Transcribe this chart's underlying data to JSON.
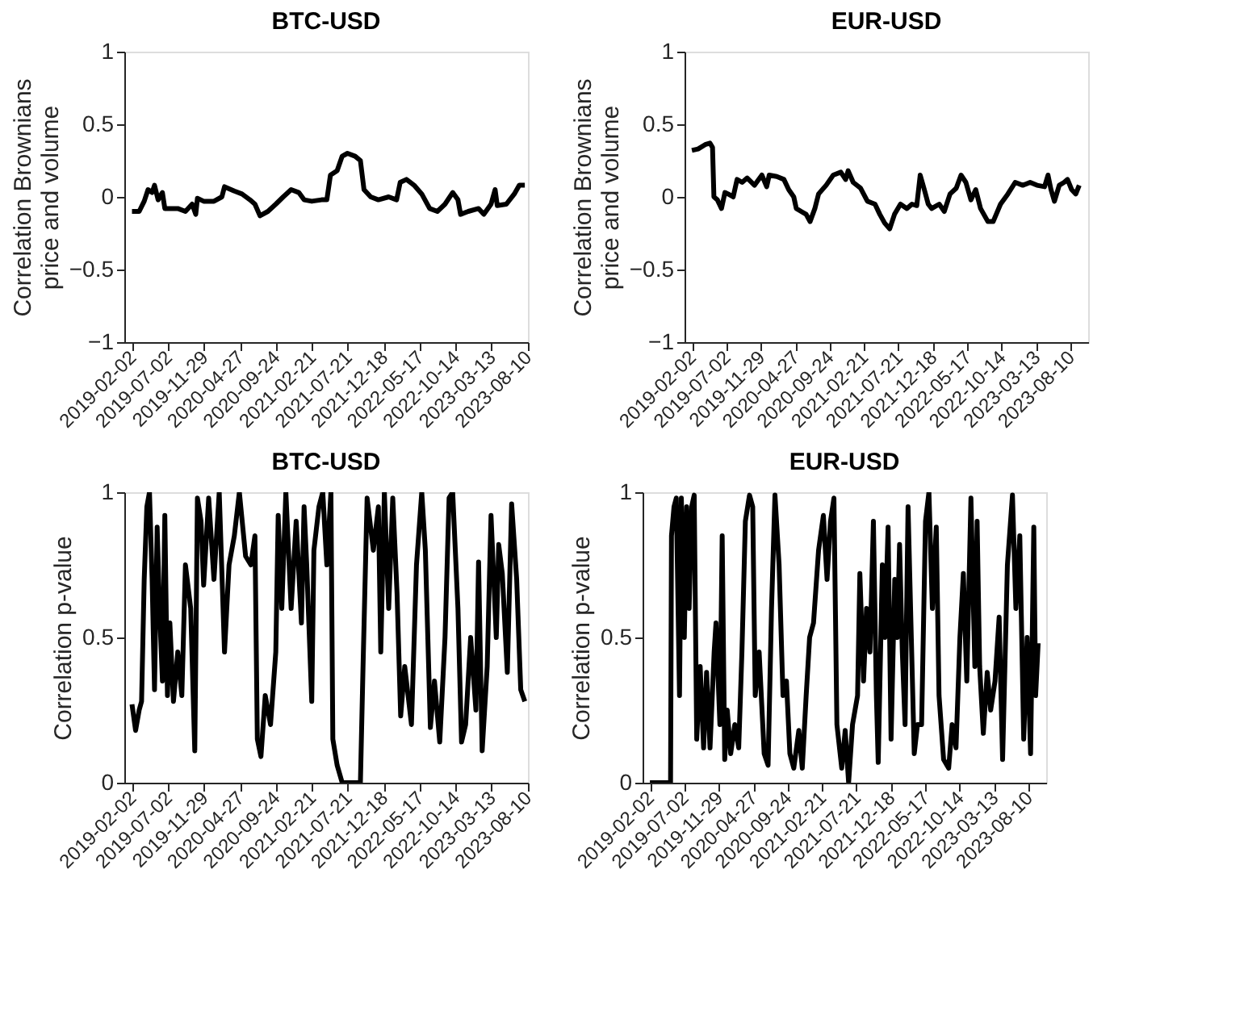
{
  "chart_data": [
    {
      "type": "line",
      "title": "BTC-USD",
      "ylabel": "Correlation Brownians\nprice and volume",
      "xlim": [
        "2019-01-01",
        "2023-08-12"
      ],
      "ylim": [
        -1,
        1
      ],
      "yticks": [
        -1,
        -0.5,
        0,
        0.5,
        1
      ],
      "xticks": [
        "2019-02-02",
        "2019-07-02",
        "2019-11-29",
        "2020-04-27",
        "2020-09-24",
        "2021-02-21",
        "2021-07-21",
        "2021-12-18",
        "2022-05-17",
        "2022-10-14",
        "2023-03-13",
        "2023-08-10"
      ],
      "grid": false,
      "x": [
        "2019-02-02",
        "2019-03-04",
        "2019-03-25",
        "2019-04-10",
        "2019-04-27",
        "2019-05-07",
        "2019-05-22",
        "2019-06-09",
        "2019-06-19",
        "2019-07-10",
        "2019-08-12",
        "2019-09-13",
        "2019-10-11",
        "2019-10-26",
        "2019-11-02",
        "2019-11-28",
        "2020-01-10",
        "2020-02-12",
        "2020-02-23",
        "2020-04-04",
        "2020-05-06",
        "2020-06-08",
        "2020-06-29",
        "2020-07-20",
        "2020-08-22",
        "2020-09-24",
        "2020-10-25",
        "2020-11-27",
        "2020-12-29",
        "2021-01-20",
        "2021-02-21",
        "2021-04-03",
        "2021-04-25",
        "2021-05-10",
        "2021-06-07",
        "2021-06-28",
        "2021-07-20",
        "2021-08-21",
        "2021-09-12",
        "2021-09-27",
        "2021-10-25",
        "2021-11-26",
        "2022-01-08",
        "2022-02-10",
        "2022-02-25",
        "2022-03-23",
        "2022-04-24",
        "2022-05-26",
        "2022-06-28",
        "2022-07-30",
        "2022-08-31",
        "2022-10-02",
        "2022-10-24",
        "2022-11-04",
        "2022-12-06",
        "2023-01-18",
        "2023-02-09",
        "2023-03-11",
        "2023-03-28",
        "2023-04-06",
        "2023-05-14",
        "2023-06-16",
        "2023-07-07",
        "2023-07-30"
      ],
      "series": [
        {
          "color": "#000000",
          "values": [
            -0.1,
            -0.1,
            -0.03,
            0.05,
            0.03,
            0.08,
            -0.02,
            0.03,
            -0.08,
            -0.08,
            -0.08,
            -0.1,
            -0.05,
            -0.12,
            -0.01,
            -0.03,
            -0.03,
            0,
            0.07,
            0.04,
            0.02,
            -0.02,
            -0.05,
            -0.13,
            -0.1,
            -0.05,
            0,
            0.05,
            0.03,
            -0.02,
            -0.03,
            -0.02,
            -0.02,
            0.15,
            0.18,
            0.28,
            0.3,
            0.28,
            0.25,
            0.05,
            0,
            -0.02,
            0,
            -0.02,
            0.1,
            0.12,
            0.08,
            0.02,
            -0.08,
            -0.1,
            -0.05,
            0.03,
            -0.02,
            -0.12,
            -0.1,
            -0.08,
            -0.12,
            -0.05,
            0.05,
            -0.06,
            -0.05,
            0.02,
            0.08,
            0.08
          ]
        }
      ]
    },
    {
      "type": "line",
      "title": "EUR-USD",
      "ylabel": "Correlation Brownians\nprice and volume",
      "xlim": [
        "2019-01-01",
        "2023-10-26"
      ],
      "ylim": [
        -1,
        1
      ],
      "yticks": [
        -1,
        -0.5,
        0,
        0.5,
        1
      ],
      "xticks": [
        "2019-02-02",
        "2019-07-02",
        "2019-11-29",
        "2020-04-27",
        "2020-09-24",
        "2021-02-21",
        "2021-07-21",
        "2021-12-18",
        "2022-05-17",
        "2022-10-14",
        "2023-03-13",
        "2023-08-10"
      ],
      "grid": false,
      "x": [
        "2019-02-02",
        "2019-03-01",
        "2019-04-01",
        "2019-04-22",
        "2019-05-03",
        "2019-05-09",
        "2019-05-24",
        "2019-06-11",
        "2019-06-26",
        "2019-07-10",
        "2019-08-01",
        "2019-08-18",
        "2019-09-09",
        "2019-10-01",
        "2019-11-02",
        "2019-12-04",
        "2019-12-25",
        "2020-01-05",
        "2020-02-07",
        "2020-03-09",
        "2020-03-30",
        "2020-04-21",
        "2020-05-02",
        "2020-05-23",
        "2020-06-14",
        "2020-07-01",
        "2020-07-22",
        "2020-08-07",
        "2020-09-09",
        "2020-10-10",
        "2020-11-12",
        "2020-12-03",
        "2020-12-14",
        "2021-01-05",
        "2021-02-06",
        "2021-03-08",
        "2021-04-10",
        "2021-05-01",
        "2021-05-22",
        "2021-06-13",
        "2021-07-04",
        "2021-07-30",
        "2021-08-27",
        "2021-09-18",
        "2021-10-09",
        "2021-10-24",
        "2021-11-11",
        "2021-11-28",
        "2021-12-13",
        "2022-01-15",
        "2022-02-06",
        "2022-03-03",
        "2022-03-30",
        "2022-04-20",
        "2022-05-11",
        "2022-06-02",
        "2022-06-23",
        "2022-07-14",
        "2022-08-15",
        "2022-09-07",
        "2022-10-09",
        "2022-11-10",
        "2022-12-12",
        "2023-01-14",
        "2023-02-15",
        "2023-03-17",
        "2023-04-19",
        "2023-05-04",
        "2023-05-17",
        "2023-06-01",
        "2023-06-22",
        "2023-07-13",
        "2023-07-28",
        "2023-08-15",
        "2023-09-02",
        "2023-09-17"
      ],
      "series": [
        {
          "color": "#000000",
          "values": [
            0.32,
            0.33,
            0.36,
            0.37,
            0.34,
            0.0,
            -0.02,
            -0.08,
            0.03,
            0.02,
            0.0,
            0.12,
            0.1,
            0.13,
            0.08,
            0.15,
            0.07,
            0.15,
            0.14,
            0.12,
            0.05,
            0.0,
            -0.08,
            -0.1,
            -0.12,
            -0.17,
            -0.08,
            0.02,
            0.08,
            0.15,
            0.17,
            0.12,
            0.18,
            0.1,
            0.06,
            -0.03,
            -0.05,
            -0.12,
            -0.18,
            -0.22,
            -0.12,
            -0.05,
            -0.08,
            -0.05,
            -0.06,
            0.15,
            0.05,
            -0.05,
            -0.08,
            -0.05,
            -0.1,
            0.02,
            0.06,
            0.15,
            0.1,
            -0.02,
            0.05,
            -0.08,
            -0.17,
            -0.17,
            -0.05,
            0.02,
            0.1,
            0.08,
            0.1,
            0.08,
            0.07,
            0.15,
            0.05,
            -0.03,
            0.08,
            0.1,
            0.12,
            0.05,
            0.02,
            0.08
          ]
        }
      ]
    },
    {
      "type": "line",
      "title": "BTC-USD",
      "ylabel": "Correlation p-value",
      "xlim": [
        "2019-01-01",
        "2023-08-12"
      ],
      "ylim": [
        0,
        1
      ],
      "yticks": [
        0,
        0.5,
        1
      ],
      "xticks": [
        "2019-02-02",
        "2019-07-02",
        "2019-11-29",
        "2020-04-27",
        "2020-09-24",
        "2021-02-21",
        "2021-07-21",
        "2021-12-18",
        "2022-05-17",
        "2022-10-14",
        "2023-03-13",
        "2023-08-10"
      ],
      "grid": false,
      "x": [
        "2019-02-02",
        "2019-02-17",
        "2019-03-04",
        "2019-03-14",
        "2019-03-25",
        "2019-04-05",
        "2019-04-16",
        "2019-04-27",
        "2019-05-07",
        "2019-05-18",
        "2019-05-28",
        "2019-06-09",
        "2019-06-19",
        "2019-06-30",
        "2019-07-10",
        "2019-07-25",
        "2019-08-12",
        "2019-08-29",
        "2019-09-13",
        "2019-10-05",
        "2019-10-22",
        "2019-11-02",
        "2019-11-17",
        "2019-11-28",
        "2019-12-19",
        "2020-01-10",
        "2020-02-01",
        "2020-02-23",
        "2020-03-13",
        "2020-04-04",
        "2020-04-25",
        "2020-05-21",
        "2020-06-12",
        "2020-06-29",
        "2020-07-09",
        "2020-07-24",
        "2020-08-11",
        "2020-09-02",
        "2020-09-24",
        "2020-10-04",
        "2020-10-19",
        "2020-11-05",
        "2020-11-27",
        "2020-12-18",
        "2021-01-09",
        "2021-01-20",
        "2021-01-31",
        "2021-02-21",
        "2021-03-02",
        "2021-03-23",
        "2021-04-08",
        "2021-04-25",
        "2021-05-12",
        "2021-05-20",
        "2021-06-07",
        "2021-06-28",
        "2021-08-10",
        "2021-09-12",
        "2021-09-23",
        "2021-10-10",
        "2021-11-05",
        "2021-11-26",
        "2021-12-06",
        "2021-12-21",
        "2022-01-08",
        "2022-01-25",
        "2022-02-12",
        "2022-02-27",
        "2022-03-16",
        "2022-04-13",
        "2022-05-04",
        "2022-05-26",
        "2022-06-10",
        "2022-07-01",
        "2022-07-18",
        "2022-08-09",
        "2022-08-31",
        "2022-09-17",
        "2022-10-02",
        "2022-10-24",
        "2022-11-08",
        "2022-11-25",
        "2022-12-16",
        "2023-01-07",
        "2023-01-18",
        "2023-02-02",
        "2023-02-23",
        "2023-03-11",
        "2023-04-02",
        "2023-04-12",
        "2023-04-27",
        "2023-05-18",
        "2023-06-05",
        "2023-06-26",
        "2023-07-13",
        "2023-07-30"
      ],
      "series": [
        {
          "color": "#000000",
          "values": [
            0.27,
            0.18,
            0.25,
            0.28,
            0.7,
            0.95,
            1.0,
            0.7,
            0.32,
            0.88,
            0.6,
            0.35,
            0.92,
            0.3,
            0.55,
            0.28,
            0.45,
            0.3,
            0.75,
            0.6,
            0.11,
            0.98,
            0.9,
            0.68,
            0.98,
            0.7,
            1.0,
            0.45,
            0.75,
            0.85,
            1.0,
            0.78,
            0.75,
            0.85,
            0.15,
            0.09,
            0.3,
            0.2,
            0.45,
            0.92,
            0.6,
            1.0,
            0.6,
            0.9,
            0.55,
            0.95,
            0.75,
            0.28,
            0.8,
            0.95,
            1.0,
            0.75,
            1.0,
            0.15,
            0.06,
            0.0,
            0.0,
            0.0,
            0.4,
            0.98,
            0.8,
            0.95,
            0.45,
            1.0,
            0.6,
            0.98,
            0.65,
            0.23,
            0.4,
            0.2,
            0.75,
            1.0,
            0.8,
            0.19,
            0.35,
            0.14,
            0.5,
            0.98,
            1.0,
            0.6,
            0.14,
            0.2,
            0.5,
            0.25,
            0.76,
            0.11,
            0.4,
            0.92,
            0.5,
            0.82,
            0.72,
            0.38,
            0.96,
            0.7,
            0.32,
            0.28
          ]
        }
      ]
    },
    {
      "type": "line",
      "title": "EUR-USD",
      "ylabel": "Correlation p-value",
      "xlim": [
        "2019-01-01",
        "2023-10-26"
      ],
      "ylim": [
        0,
        1
      ],
      "yticks": [
        0,
        0.5,
        1
      ],
      "xticks": [
        "2019-02-02",
        "2019-07-02",
        "2019-11-29",
        "2020-04-27",
        "2020-09-24",
        "2021-02-21",
        "2021-07-21",
        "2021-12-18",
        "2022-05-17",
        "2022-10-14",
        "2023-03-13",
        "2023-08-10"
      ],
      "grid": false,
      "x": [
        "2019-02-02",
        "2019-05-03",
        "2019-05-07",
        "2019-05-18",
        "2019-05-28",
        "2019-06-11",
        "2019-06-19",
        "2019-07-02",
        "2019-07-12",
        "2019-07-23",
        "2019-08-03",
        "2019-08-14",
        "2019-08-25",
        "2019-09-09",
        "2019-09-24",
        "2019-10-07",
        "2019-10-22",
        "2019-11-09",
        "2019-11-17",
        "2019-12-04",
        "2019-12-14",
        "2019-12-25",
        "2020-01-05",
        "2020-01-20",
        "2020-02-07",
        "2020-02-24",
        "2020-03-09",
        "2020-03-24",
        "2020-04-11",
        "2020-04-25",
        "2020-05-06",
        "2020-05-23",
        "2020-06-14",
        "2020-07-01",
        "2020-07-16",
        "2020-07-31",
        "2020-08-18",
        "2020-09-04",
        "2020-09-19",
        "2020-10-04",
        "2020-10-21",
        "2020-11-12",
        "2020-11-27",
        "2020-12-14",
        "2020-12-29",
        "2021-01-15",
        "2021-02-06",
        "2021-02-27",
        "2021-03-15",
        "2021-03-30",
        "2021-04-14",
        "2021-04-27",
        "2021-05-18",
        "2021-06-02",
        "2021-06-17",
        "2021-07-04",
        "2021-07-26",
        "2021-08-05",
        "2021-08-21",
        "2021-09-03",
        "2021-09-18",
        "2021-10-03",
        "2021-10-16",
        "2021-10-24",
        "2021-11-11",
        "2021-11-22",
        "2021-12-06",
        "2021-12-19",
        "2022-01-04",
        "2022-01-15",
        "2022-01-25",
        "2022-02-06",
        "2022-02-18",
        "2022-03-03",
        "2022-03-14",
        "2022-03-30",
        "2022-04-13",
        "2022-05-01",
        "2022-05-18",
        "2022-06-02",
        "2022-06-17",
        "2022-07-04",
        "2022-07-16",
        "2022-08-05",
        "2022-08-27",
        "2022-09-11",
        "2022-09-28",
        "2022-10-15",
        "2022-10-30",
        "2022-11-14",
        "2022-12-02",
        "2022-12-19",
        "2022-12-29",
        "2023-01-09",
        "2023-01-25",
        "2023-02-11",
        "2023-02-26",
        "2023-03-17",
        "2023-04-04",
        "2023-04-19",
        "2023-05-10",
        "2023-06-01",
        "2023-06-16",
        "2023-07-03",
        "2023-07-20",
        "2023-08-04",
        "2023-08-19",
        "2023-09-02",
        "2023-09-10",
        "2023-09-21"
      ],
      "series": [
        {
          "color": "#000000",
          "values": [
            0.0,
            0.0,
            0.85,
            0.95,
            0.98,
            0.3,
            0.98,
            0.5,
            0.95,
            0.6,
            0.95,
            0.99,
            0.15,
            0.4,
            0.12,
            0.38,
            0.12,
            0.45,
            0.55,
            0.2,
            0.85,
            0.08,
            0.25,
            0.1,
            0.2,
            0.12,
            0.45,
            0.9,
            0.99,
            0.95,
            0.3,
            0.45,
            0.1,
            0.06,
            0.6,
            0.99,
            0.75,
            0.3,
            0.35,
            0.1,
            0.05,
            0.18,
            0.05,
            0.3,
            0.5,
            0.55,
            0.8,
            0.92,
            0.7,
            0.9,
            0.98,
            0.2,
            0.05,
            0.18,
            0.0,
            0.2,
            0.3,
            0.72,
            0.35,
            0.6,
            0.45,
            0.9,
            0.3,
            0.07,
            0.75,
            0.5,
            0.88,
            0.15,
            0.7,
            0.5,
            0.82,
            0.45,
            0.2,
            0.95,
            0.6,
            0.1,
            0.2,
            0.2,
            0.9,
            1.0,
            0.6,
            0.88,
            0.3,
            0.08,
            0.05,
            0.2,
            0.12,
            0.5,
            0.72,
            0.35,
            0.98,
            0.4,
            0.9,
            0.4,
            0.17,
            0.38,
            0.25,
            0.35,
            0.57,
            0.08,
            0.75,
            0.99,
            0.6,
            0.85,
            0.15,
            0.5,
            0.1,
            0.88,
            0.3,
            0.48
          ]
        }
      ]
    }
  ]
}
